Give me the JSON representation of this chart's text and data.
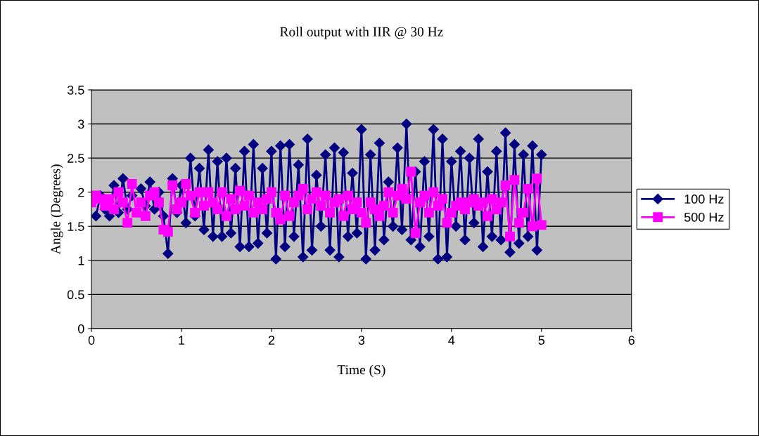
{
  "chart_data": {
    "type": "line",
    "title": "Roll output with IIR @ 30 Hz",
    "xlabel": "Time (S)",
    "ylabel": "Angle (Degrees)",
    "x": [
      0,
      0.05,
      0.1,
      0.15,
      0.2,
      0.25,
      0.3,
      0.35,
      0.4,
      0.45,
      0.5,
      0.55,
      0.6,
      0.65,
      0.7,
      0.75,
      0.8,
      0.85,
      0.9,
      0.95,
      1.0,
      1.05,
      1.1,
      1.15,
      1.2,
      1.25,
      1.3,
      1.35,
      1.4,
      1.45,
      1.5,
      1.55,
      1.6,
      1.65,
      1.7,
      1.75,
      1.8,
      1.85,
      1.9,
      1.95,
      2.0,
      2.05,
      2.1,
      2.15,
      2.2,
      2.25,
      2.3,
      2.35,
      2.4,
      2.45,
      2.5,
      2.55,
      2.6,
      2.65,
      2.7,
      2.75,
      2.8,
      2.85,
      2.9,
      2.95,
      3.0,
      3.05,
      3.1,
      3.15,
      3.2,
      3.25,
      3.3,
      3.35,
      3.4,
      3.45,
      3.5,
      3.55,
      3.6,
      3.65,
      3.7,
      3.75,
      3.8,
      3.85,
      3.9,
      3.95,
      4.0,
      4.05,
      4.1,
      4.15,
      4.2,
      4.25,
      4.3,
      4.35,
      4.4,
      4.45,
      4.5,
      4.55,
      4.6,
      4.65,
      4.7,
      4.75,
      4.8,
      4.85,
      4.9,
      4.95,
      5.0
    ],
    "series": [
      {
        "name": "100 Hz",
        "color": "#000080",
        "marker": "diamond",
        "values": [
          null,
          1.65,
          1.95,
          1.75,
          1.65,
          2.1,
          1.7,
          2.2,
          1.75,
          1.95,
          null,
          2.05,
          1.8,
          2.15,
          1.75,
          2.0,
          1.65,
          1.1,
          2.2,
          1.7,
          2.1,
          1.55,
          2.5,
          1.65,
          2.35,
          1.45,
          2.62,
          1.35,
          2.45,
          1.35,
          2.5,
          1.4,
          2.35,
          1.2,
          2.6,
          1.2,
          2.7,
          1.25,
          2.35,
          1.4,
          2.6,
          1.02,
          2.68,
          1.2,
          2.7,
          1.35,
          2.4,
          1.05,
          2.78,
          1.15,
          2.25,
          1.5,
          2.55,
          1.15,
          2.65,
          1.05,
          2.58,
          1.35,
          2.28,
          1.4,
          2.92,
          1.02,
          2.55,
          1.15,
          2.72,
          1.3,
          2.15,
          1.5,
          2.65,
          1.45,
          3.0,
          1.3,
          2.3,
          1.2,
          2.45,
          1.35,
          2.92,
          1.02,
          2.78,
          1.05,
          2.45,
          1.5,
          2.6,
          1.3,
          2.5,
          1.55,
          2.78,
          1.2,
          2.3,
          1.35,
          2.6,
          1.3,
          2.87,
          1.12,
          2.7,
          1.25,
          2.55,
          1.35,
          2.68,
          1.15,
          2.55
        ]
      },
      {
        "name": "500 Hz",
        "color": "#ff00ff",
        "marker": "square",
        "values": [
          1.85,
          1.95,
          1.9,
          1.8,
          1.9,
          1.75,
          2.0,
          1.85,
          1.55,
          2.12,
          1.7,
          1.85,
          1.65,
          1.95,
          2.0,
          1.85,
          1.45,
          1.42,
          2.1,
          1.75,
          1.85,
          2.12,
          1.95,
          1.7,
          2.0,
          1.8,
          2.0,
          1.85,
          1.75,
          2.0,
          1.65,
          1.9,
          1.75,
          2.02,
          1.8,
          1.95,
          1.7,
          1.85,
          1.75,
          1.9,
          2.0,
          1.7,
          1.6,
          1.95,
          1.65,
          1.85,
          1.95,
          2.05,
          1.75,
          1.9,
          2.0,
          1.8,
          1.95,
          1.7,
          1.85,
          1.9,
          1.65,
          1.95,
          1.75,
          1.85,
          1.7,
          1.55,
          1.85,
          1.75,
          1.65,
          1.8,
          2.0,
          1.7,
          1.95,
          2.05,
          1.9,
          2.3,
          1.4,
          1.85,
          1.95,
          1.7,
          2.0,
          1.8,
          1.9,
          1.55,
          1.7,
          1.8,
          1.85,
          1.75,
          1.85,
          1.9,
          1.8,
          1.85,
          1.65,
          1.9,
          1.75,
          1.85,
          2.1,
          1.35,
          2.18,
          1.55,
          1.7,
          2.05,
          1.5,
          2.2,
          1.52
        ]
      }
    ],
    "xlim": [
      0,
      6
    ],
    "xticks": [
      0,
      1,
      2,
      3,
      4,
      5,
      6
    ],
    "ylim": [
      0,
      3.5
    ],
    "yticks": [
      0,
      0.5,
      1,
      1.5,
      2,
      2.5,
      3,
      3.5
    ],
    "grid": "y",
    "legend": "right"
  }
}
